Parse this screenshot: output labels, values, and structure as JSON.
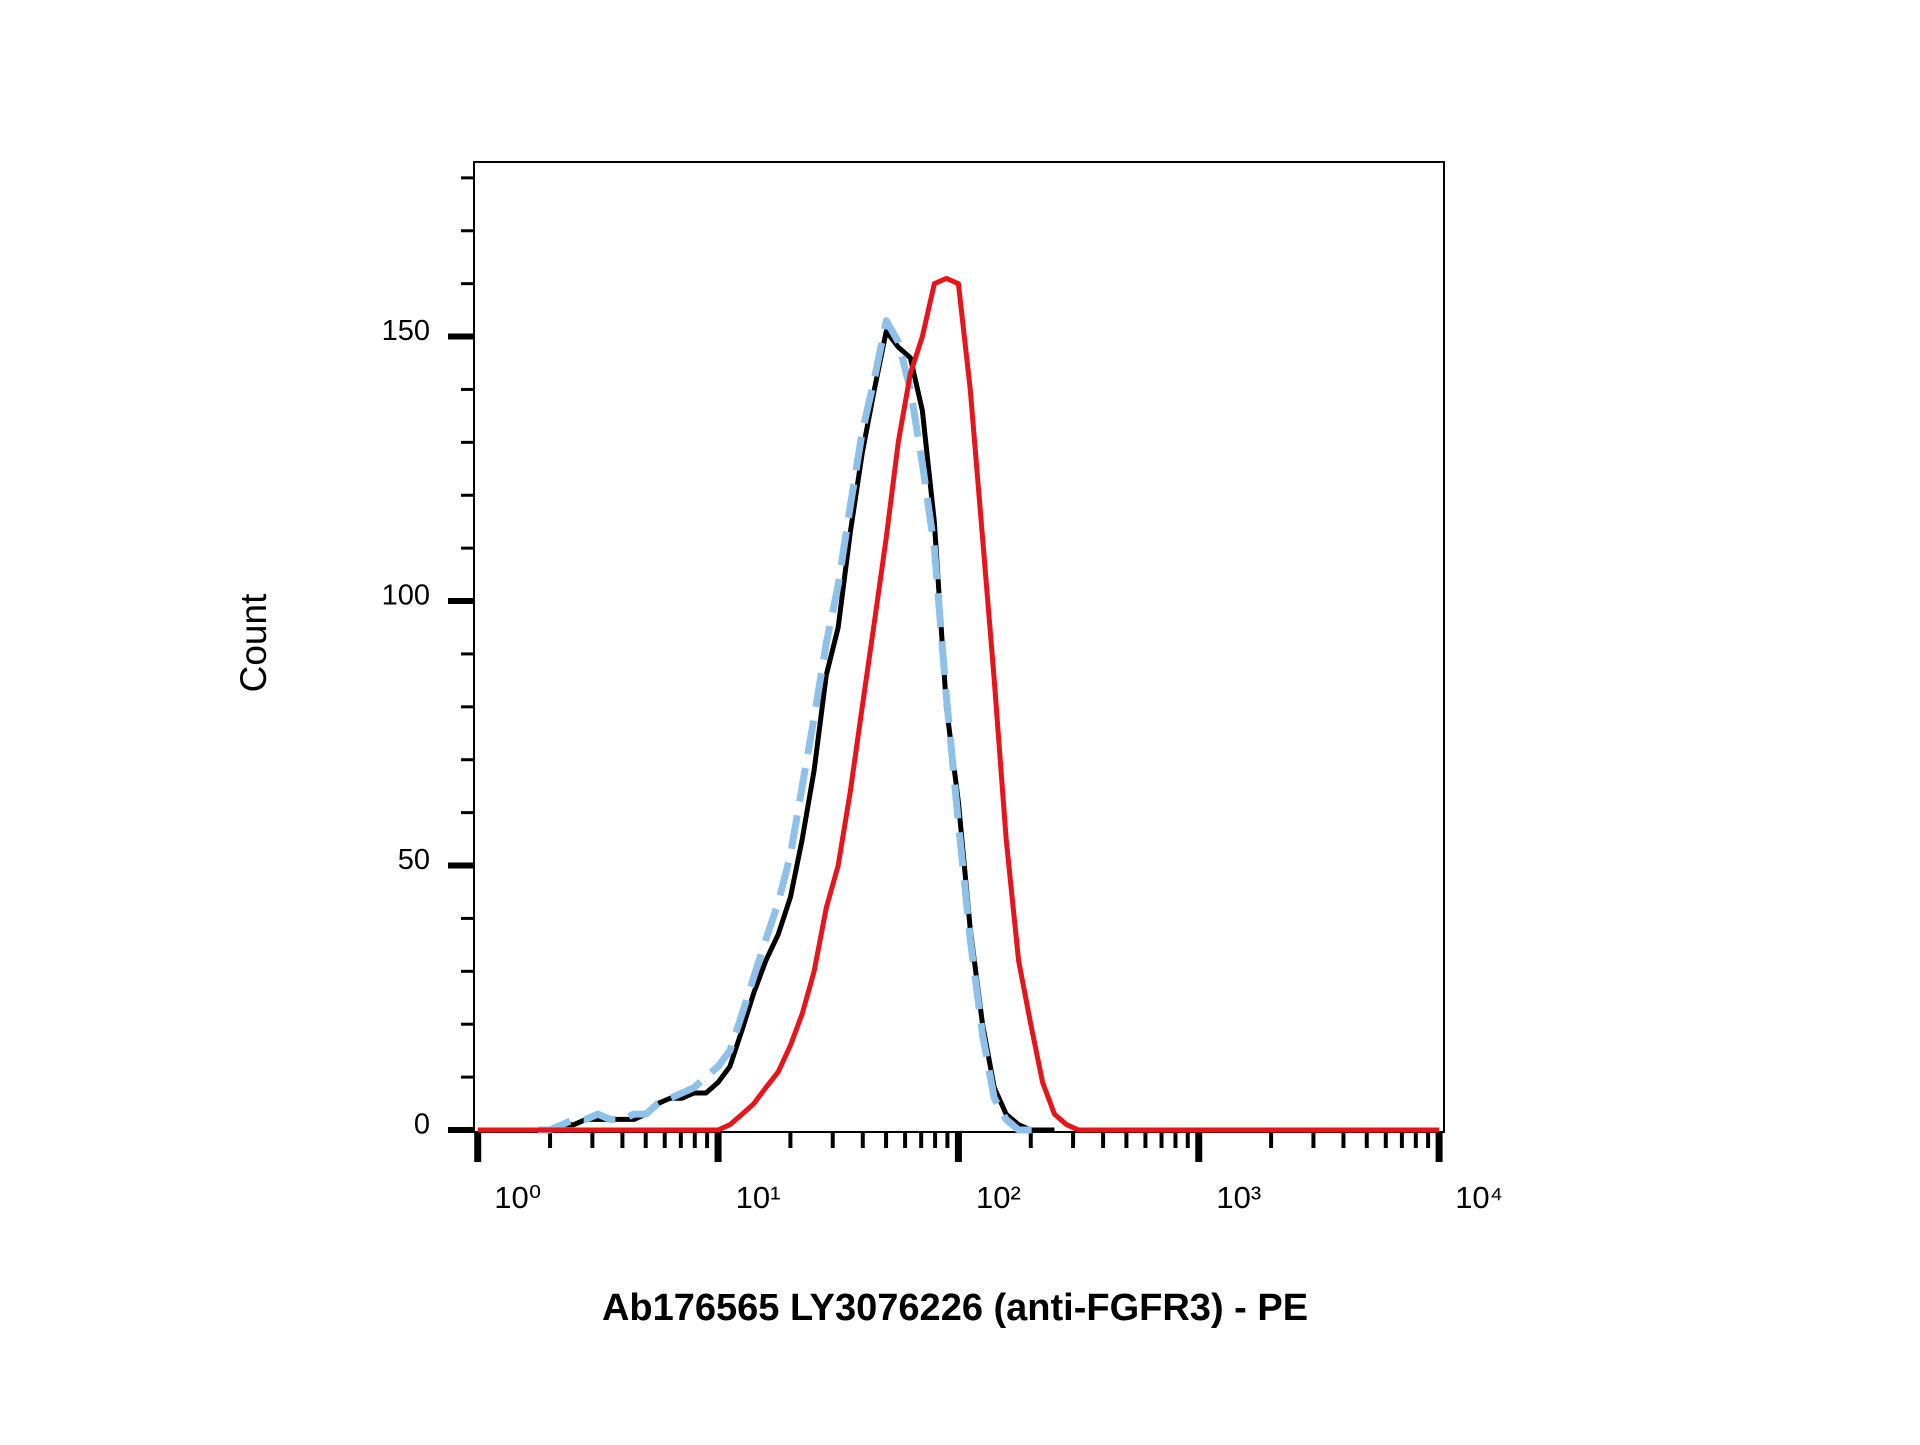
{
  "chart_data": {
    "type": "line",
    "xlabel": "Ab176565 LY3076226 (anti-FGFR3) - PE",
    "ylabel": "Count",
    "xscale": "log",
    "xlim": [
      0.965,
      10480
    ],
    "ylim": [
      0,
      183
    ],
    "xticks": [
      {
        "value": 1,
        "label": "10⁰"
      },
      {
        "value": 10,
        "label": "10¹"
      },
      {
        "value": 100,
        "label": "10²"
      },
      {
        "value": 1000,
        "label": "10³"
      },
      {
        "value": 10000,
        "label": "10⁴"
      }
    ],
    "xminorticks": [
      2,
      3,
      4,
      5,
      6,
      7,
      8,
      9,
      20,
      30,
      40,
      50,
      60,
      70,
      80,
      90,
      200,
      300,
      400,
      500,
      600,
      700,
      800,
      900,
      2000,
      3000,
      4000,
      5000,
      6000,
      7000,
      8000,
      9000
    ],
    "yticks": [
      0,
      50,
      100,
      150
    ],
    "yminorticks": [
      10,
      20,
      30,
      40,
      60,
      70,
      80,
      90,
      110,
      120,
      130,
      140,
      160,
      170,
      180
    ],
    "x": [
      1,
      1.12,
      1.26,
      1.41,
      1.58,
      1.78,
      2,
      2.24,
      2.51,
      2.82,
      3.16,
      3.55,
      3.98,
      4.47,
      5.01,
      5.62,
      6.31,
      7.08,
      7.94,
      8.91,
      10,
      11.2,
      12.6,
      14.1,
      15.8,
      17.8,
      20,
      22.4,
      25.1,
      28.2,
      31.6,
      35.5,
      39.8,
      44.7,
      50.1,
      56.2,
      63.1,
      70.8,
      79.4,
      89.1,
      100,
      112,
      126,
      141,
      158,
      178,
      200,
      224,
      251,
      282,
      316,
      355,
      398,
      447,
      501,
      562,
      631,
      708,
      794,
      891,
      1000,
      10000
    ],
    "series": [
      {
        "color": "#000000",
        "linestyle": "solid",
        "values": [
          null,
          null,
          null,
          null,
          null,
          0,
          0,
          1,
          1,
          2,
          2,
          2,
          2,
          2,
          3,
          5,
          6,
          6,
          7,
          7,
          9,
          12,
          19,
          26,
          32,
          37,
          44,
          55,
          68,
          86,
          95,
          113,
          128,
          140,
          151,
          148,
          146,
          136,
          115,
          80,
          62,
          38,
          20,
          8,
          3,
          1,
          0,
          0,
          0,
          null,
          null,
          null,
          null,
          null,
          null,
          null,
          null,
          null,
          null,
          null,
          null,
          null
        ]
      },
      {
        "color": "#8ec1ea",
        "linestyle": "dashed",
        "values": [
          null,
          null,
          null,
          null,
          null,
          0,
          0,
          1,
          2,
          2,
          3,
          2,
          2,
          3,
          3,
          5,
          6,
          7,
          8,
          10,
          12,
          15,
          22,
          29,
          36,
          43,
          52,
          65,
          78,
          92,
          103,
          118,
          132,
          142,
          153,
          149,
          140,
          126,
          110,
          82,
          58,
          36,
          18,
          6,
          2,
          0,
          0,
          0,
          null,
          null,
          null,
          null,
          null,
          null,
          null,
          null,
          null,
          null,
          null,
          null,
          null,
          null
        ]
      },
      {
        "color": "#e8141a",
        "linestyle": "solid",
        "values": [
          0,
          0,
          0,
          0,
          0,
          0,
          0,
          0,
          0,
          0,
          0,
          0,
          0,
          0,
          0,
          0,
          0,
          0,
          0,
          0,
          0,
          1,
          3,
          5,
          8,
          11,
          16,
          22,
          30,
          42,
          50,
          64,
          80,
          96,
          112,
          130,
          143,
          150,
          160,
          161,
          160,
          140,
          112,
          85,
          55,
          32,
          20,
          9,
          3,
          1,
          0,
          0,
          0,
          0,
          0,
          0,
          0,
          0,
          0,
          0,
          0,
          0
        ]
      }
    ]
  }
}
